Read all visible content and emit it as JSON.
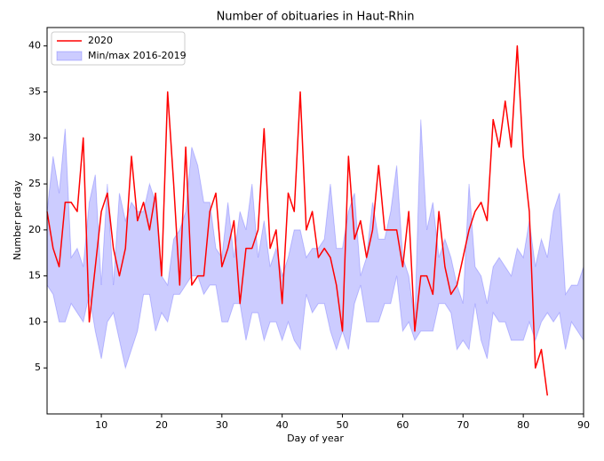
{
  "chart_data": {
    "type": "line",
    "title": "Number of obituaries in Haut-Rhin",
    "xlabel": "Day of year",
    "ylabel": "Number per day",
    "x": [
      1,
      2,
      3,
      4,
      5,
      6,
      7,
      8,
      9,
      10,
      11,
      12,
      13,
      14,
      15,
      16,
      17,
      18,
      19,
      20,
      21,
      22,
      23,
      24,
      25,
      26,
      27,
      28,
      29,
      30,
      31,
      32,
      33,
      34,
      35,
      36,
      37,
      38,
      39,
      40,
      41,
      42,
      43,
      44,
      45,
      46,
      47,
      48,
      49,
      50,
      51,
      52,
      53,
      54,
      55,
      56,
      57,
      58,
      59,
      60,
      61,
      62,
      63,
      64,
      65,
      66,
      67,
      68,
      69,
      70,
      71,
      72,
      73,
      74,
      75,
      76,
      77,
      78,
      79,
      80,
      81,
      82,
      83,
      84,
      85,
      86,
      87,
      88,
      89,
      90
    ],
    "series": [
      {
        "name": "2020",
        "color": "#ff0000",
        "values": [
          22,
          18,
          16,
          23,
          23,
          22,
          30,
          10,
          16,
          22,
          24,
          18,
          15,
          18,
          28,
          21,
          23,
          20,
          24,
          15,
          35,
          25,
          14,
          29,
          14,
          15,
          15,
          22,
          24,
          16,
          18,
          21,
          12,
          18,
          18,
          20,
          31,
          18,
          20,
          12,
          24,
          22,
          35,
          20,
          22,
          17,
          18,
          17,
          14,
          9,
          28,
          19,
          21,
          17,
          20,
          27,
          20,
          20,
          20,
          16,
          22,
          9,
          15,
          15,
          13,
          22,
          16,
          13,
          14,
          17,
          20,
          22,
          23,
          21,
          32,
          29,
          34,
          29,
          40,
          28,
          22,
          5,
          7,
          2,
          null,
          null,
          null,
          null,
          null,
          null
        ]
      }
    ],
    "band": {
      "name": "Min/max 2016-2019",
      "color": "#0000ff",
      "upper": [
        22,
        28,
        24,
        31,
        17,
        18,
        16,
        23,
        26,
        14,
        25,
        14,
        24,
        21,
        23,
        22,
        22,
        25,
        23,
        15,
        14,
        19,
        20,
        22,
        29,
        27,
        23,
        23,
        18,
        17,
        23,
        17,
        22,
        20,
        25,
        17,
        21,
        16,
        18,
        15,
        17,
        20,
        20,
        17,
        18,
        18,
        19,
        25,
        18,
        18,
        22,
        24,
        15,
        17,
        23,
        19,
        19,
        22,
        27,
        17,
        15,
        10,
        32,
        20,
        23,
        17,
        19,
        17,
        14,
        12,
        25,
        16,
        15,
        12,
        16,
        17,
        16,
        15,
        18,
        17,
        21,
        16,
        19,
        17,
        22,
        24,
        13,
        14,
        14,
        16
      ],
      "lower": [
        14,
        13,
        10,
        10,
        12,
        11,
        10,
        13,
        9,
        6,
        10,
        11,
        8,
        5,
        7,
        9,
        13,
        13,
        9,
        11,
        10,
        13,
        13,
        14,
        15,
        15,
        13,
        14,
        14,
        10,
        10,
        12,
        12,
        8,
        11,
        11,
        8,
        10,
        10,
        8,
        10,
        8,
        7,
        13,
        11,
        12,
        12,
        9,
        7,
        9,
        7,
        12,
        14,
        10,
        10,
        10,
        12,
        12,
        15,
        9,
        10,
        8,
        9,
        9,
        9,
        12,
        12,
        11,
        7,
        8,
        7,
        12,
        8,
        6,
        11,
        10,
        10,
        8,
        8,
        8,
        10,
        8,
        10,
        11,
        10,
        11,
        7,
        10,
        9,
        8
      ]
    },
    "xlim": [
      1,
      90
    ],
    "xticks": [
      10,
      20,
      30,
      40,
      50,
      60,
      70,
      80,
      90
    ],
    "ylim": [
      0,
      42
    ],
    "yticks": [
      5,
      10,
      15,
      20,
      25,
      30,
      35,
      40
    ],
    "legend": "upper left"
  }
}
